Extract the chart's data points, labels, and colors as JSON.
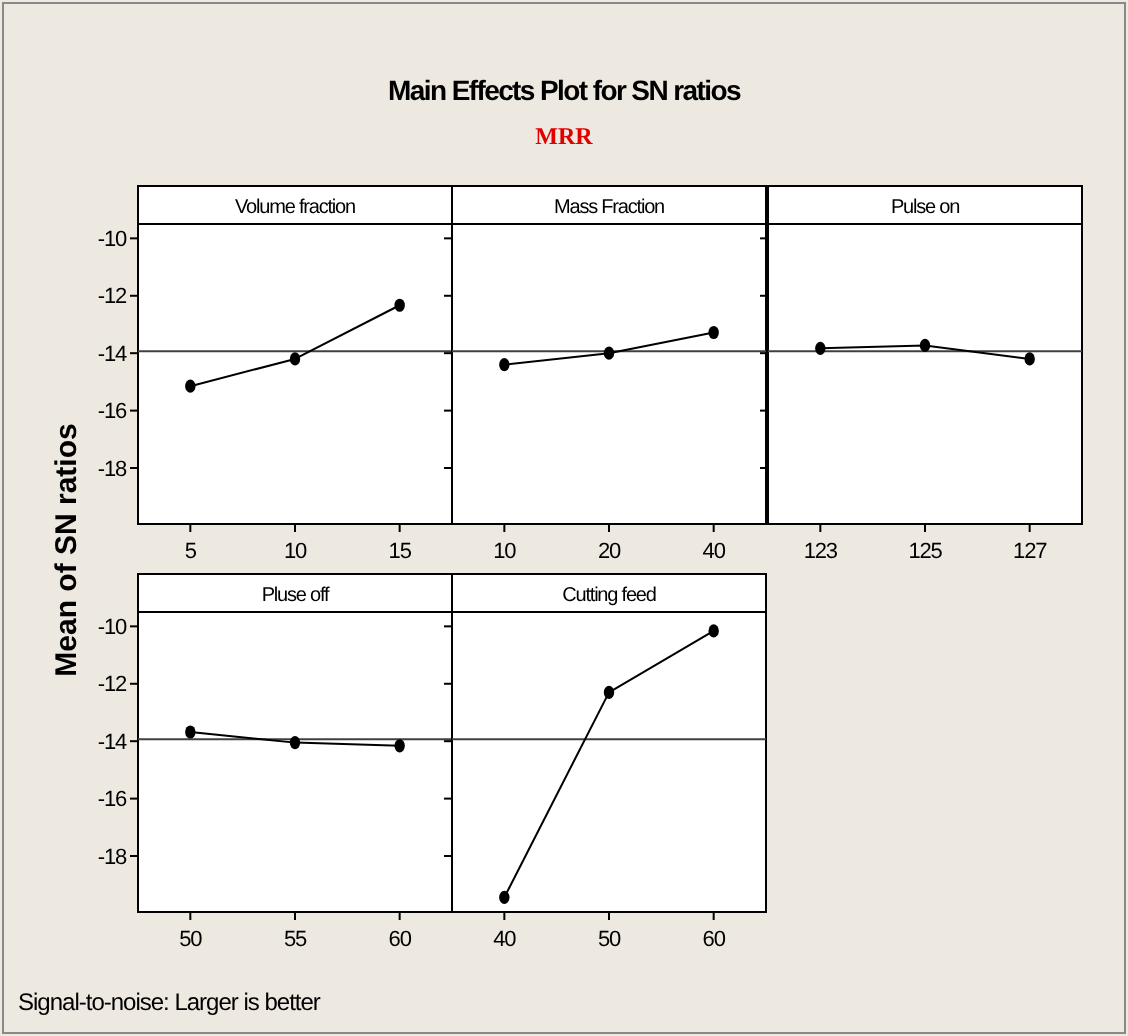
{
  "chart_data": [
    {
      "type": "other",
      "title": "Main Effects Plot for SN ratios",
      "subtitle": "MRR",
      "ylabel": "Mean of SN ratios",
      "annotations": [
        "Signal-to-noise: Larger is better"
      ]
    },
    {
      "type": "line",
      "title": "Volume fraction",
      "categories": [
        "5",
        "10",
        "15"
      ],
      "series": [
        {
          "color": "#000000",
          "values": [
            -15.15,
            -14.2,
            -12.33
          ]
        }
      ],
      "ylim": [
        -19.95,
        -9.5
      ],
      "yticks": [
        -10,
        -12,
        -14,
        -16,
        -18
      ],
      "ref_lines": [
        {
          "axis": "y",
          "value": -13.93,
          "color": "#404040"
        }
      ],
      "marker": "circle"
    },
    {
      "type": "line",
      "title": "Mass Fraction",
      "categories": [
        "10",
        "20",
        "40"
      ],
      "series": [
        {
          "color": "#000000",
          "values": [
            -14.4,
            -14.0,
            -13.28
          ]
        }
      ],
      "ylim": [
        -19.95,
        -9.5
      ],
      "yticks": [
        -10,
        -12,
        -14,
        -16,
        -18
      ],
      "tick_labels": "x",
      "ref_lines": [
        {
          "axis": "y",
          "value": -13.93,
          "color": "#404040"
        }
      ],
      "marker": "circle"
    },
    {
      "type": "line",
      "title": "Pulse on",
      "categories": [
        "123",
        "125",
        "127"
      ],
      "series": [
        {
          "color": "#000000",
          "values": [
            -13.83,
            -13.73,
            -14.2
          ]
        }
      ],
      "ylim": [
        -19.95,
        -9.5
      ],
      "yticks": [
        -10,
        -12,
        -14,
        -16,
        -18
      ],
      "tick_labels": "x",
      "ref_lines": [
        {
          "axis": "y",
          "value": -13.93,
          "color": "#404040"
        }
      ],
      "marker": "circle"
    },
    {
      "type": "line",
      "title": "Pluse off",
      "categories": [
        "50",
        "55",
        "60"
      ],
      "series": [
        {
          "color": "#000000",
          "values": [
            -13.68,
            -14.05,
            -14.16
          ]
        }
      ],
      "ylim": [
        -19.95,
        -9.5
      ],
      "yticks": [
        -10,
        -12,
        -14,
        -16,
        -18
      ],
      "ref_lines": [
        {
          "axis": "y",
          "value": -13.93,
          "color": "#404040"
        }
      ],
      "marker": "circle"
    },
    {
      "type": "line",
      "title": "Cutting feed",
      "categories": [
        "40",
        "50",
        "60"
      ],
      "series": [
        {
          "color": "#000000",
          "values": [
            -19.44,
            -12.3,
            -10.16
          ]
        }
      ],
      "ylim": [
        -19.95,
        -9.5
      ],
      "yticks": [
        -10,
        -12,
        -14,
        -16,
        -18
      ],
      "tick_labels": "x",
      "ref_lines": [
        {
          "axis": "y",
          "value": -13.93,
          "color": "#404040"
        }
      ],
      "marker": "circle"
    }
  ]
}
